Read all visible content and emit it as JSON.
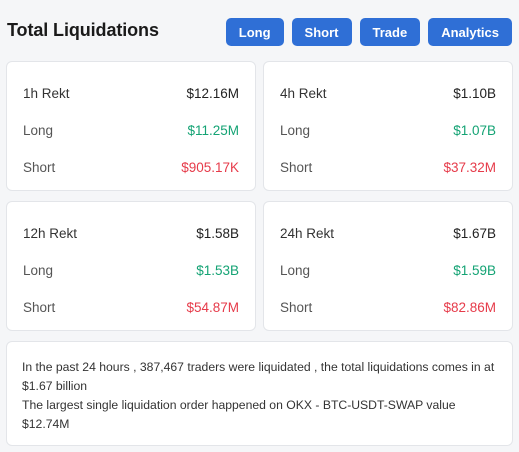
{
  "header": {
    "title": "Total Liquidations",
    "buttons": [
      "Long",
      "Short",
      "Trade",
      "Analytics"
    ]
  },
  "cards": [
    {
      "period_label": "1h Rekt",
      "total": "$12.16M",
      "long_label": "Long",
      "long": "$11.25M",
      "short_label": "Short",
      "short": "$905.17K"
    },
    {
      "period_label": "4h Rekt",
      "total": "$1.10B",
      "long_label": "Long",
      "long": "$1.07B",
      "short_label": "Short",
      "short": "$37.32M"
    },
    {
      "period_label": "12h Rekt",
      "total": "$1.58B",
      "long_label": "Long",
      "long": "$1.53B",
      "short_label": "Short",
      "short": "$54.87M"
    },
    {
      "period_label": "24h Rekt",
      "total": "$1.67B",
      "long_label": "Long",
      "long": "$1.59B",
      "short_label": "Short",
      "short": "$82.86M"
    }
  ],
  "summary": {
    "line1": "In the past 24 hours , 387,467 traders were liquidated , the total liquidations comes in at $1.67 billion",
    "line2": "The largest single liquidation order happened on OKX - BTC-USDT-SWAP value $12.74M"
  },
  "colors": {
    "button_bg": "#2f6fd6",
    "long": "#14a374",
    "short": "#e63b4a"
  }
}
